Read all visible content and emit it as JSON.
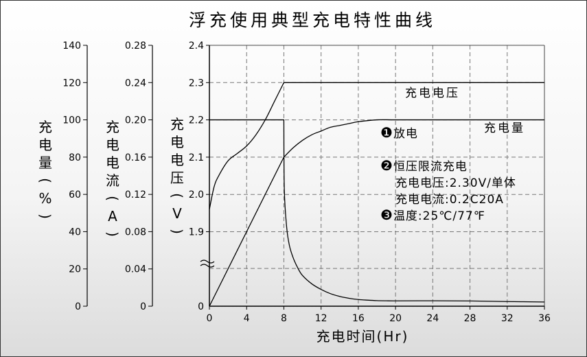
{
  "chart_data": {
    "type": "line",
    "title": "浮充使用典型充电特性曲线",
    "xlabel": "充电时间(Hr)",
    "x_ticks": [
      0,
      4,
      8,
      12,
      16,
      20,
      24,
      28,
      32,
      36
    ],
    "xlim": [
      0,
      36
    ],
    "grid": true,
    "axes": {
      "charge_pct": {
        "label": "充电量(%)",
        "ticks": [
          "0",
          "20",
          "40",
          "60",
          "80",
          "100",
          "120",
          "140"
        ],
        "ylim": [
          0,
          140
        ]
      },
      "current": {
        "label": "充电电流(A)",
        "ticks": [
          "0",
          "0.04",
          "0.08",
          "0.12",
          "0.16",
          "0.20",
          "0.24",
          "0.28"
        ],
        "ylim": [
          0,
          0.28
        ]
      },
      "voltage": {
        "label": "充电电压(V)",
        "ticks": [
          "0",
          "1.9",
          "2.0",
          "2.1",
          "2.2",
          "2.3",
          "2.4"
        ],
        "ylim": [
          1.8,
          2.4
        ],
        "break": true
      }
    },
    "series": [
      {
        "name": "充电电压",
        "axis": "voltage",
        "x": [
          0,
          0.5,
          1,
          2,
          3,
          4,
          5,
          6,
          7,
          8,
          36
        ],
        "y": [
          1.96,
          2.02,
          2.05,
          2.09,
          2.11,
          2.13,
          2.16,
          2.2,
          2.25,
          2.3,
          2.3
        ]
      },
      {
        "name": "充电量",
        "axis": "charge_pct",
        "x": [
          0,
          8,
          9,
          10,
          11,
          12,
          13,
          14,
          15,
          16,
          18,
          20,
          24,
          28,
          32,
          36
        ],
        "y": [
          0,
          80,
          85,
          89,
          92,
          94,
          96,
          97,
          98,
          99,
          100,
          100,
          100,
          100,
          100,
          100
        ]
      },
      {
        "name": "充电电流",
        "axis": "current",
        "x": [
          0,
          8,
          8.05,
          8.3,
          8.6,
          9,
          9.5,
          10,
          11,
          12,
          13,
          14,
          15,
          16,
          17,
          18,
          19,
          20,
          24,
          28,
          32,
          36
        ],
        "y": [
          0.2,
          0.2,
          0.125,
          0.085,
          0.065,
          0.052,
          0.041,
          0.033,
          0.024,
          0.018,
          0.0135,
          0.0105,
          0.0085,
          0.0072,
          0.0065,
          0.006,
          0.0058,
          0.0057,
          0.0058,
          0.0056,
          0.005,
          0.0045
        ]
      }
    ],
    "curve_labels": {
      "voltage": "充电电压",
      "charge": "充电量"
    },
    "annotations": [
      {
        "marker": "❶",
        "text": "放电"
      },
      {
        "marker": "❷",
        "text": "恒压限流充电"
      },
      {
        "marker": "",
        "text": "充电电压:2.30V/单体"
      },
      {
        "marker": "",
        "text": "充电电流:0.2C20A"
      },
      {
        "marker": "❸",
        "text": "温度:25℃/77℉"
      }
    ]
  }
}
